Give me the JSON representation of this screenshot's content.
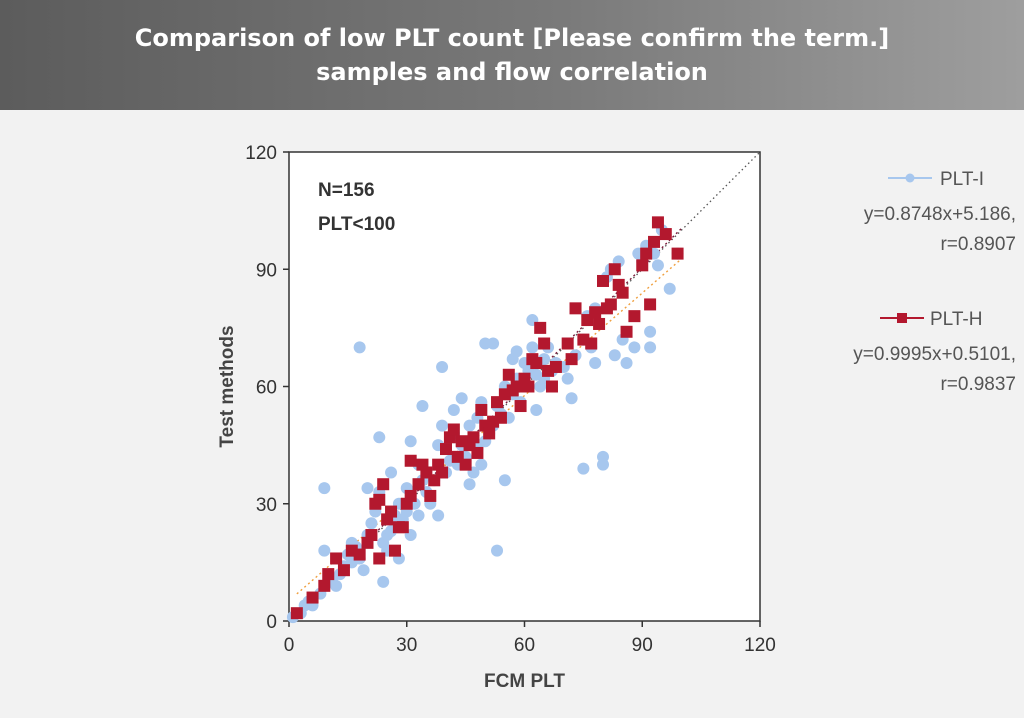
{
  "header": {
    "title_line1": "Comparison of low PLT count [Please confirm the term.]",
    "title_line2": "samples and flow correlation"
  },
  "chart_data": {
    "type": "scatter",
    "title": "",
    "xlabel": "FCM PLT",
    "ylabel": "Test methods",
    "xlim": [
      0,
      120
    ],
    "ylim": [
      0,
      120
    ],
    "xticks": [
      0,
      30,
      60,
      90,
      120
    ],
    "yticks": [
      0,
      30,
      60,
      90,
      120
    ],
    "annotations": [
      "N=156",
      "PLT<100"
    ],
    "identity_line": true,
    "series": [
      {
        "name": "PLT-I",
        "color": "#a7c7ee",
        "marker": "circle",
        "equation": "y=0.8748x+5.186,",
        "r": "r=0.8907",
        "fit": {
          "slope": 0.8748,
          "intercept": 5.186
        },
        "fit_color": "#f0a040",
        "points": [
          [
            1,
            1
          ],
          [
            3,
            2
          ],
          [
            4,
            4
          ],
          [
            5,
            5
          ],
          [
            6,
            4
          ],
          [
            8,
            7
          ],
          [
            9,
            34
          ],
          [
            9,
            18
          ],
          [
            10,
            10
          ],
          [
            11,
            11
          ],
          [
            12,
            9
          ],
          [
            13,
            12
          ],
          [
            14,
            14
          ],
          [
            15,
            17
          ],
          [
            16,
            20
          ],
          [
            16,
            15
          ],
          [
            17,
            19
          ],
          [
            18,
            16
          ],
          [
            18,
            70
          ],
          [
            19,
            13
          ],
          [
            20,
            22
          ],
          [
            20,
            34
          ],
          [
            21,
            25
          ],
          [
            22,
            28
          ],
          [
            23,
            33
          ],
          [
            23,
            47
          ],
          [
            24,
            20
          ],
          [
            24,
            10
          ],
          [
            25,
            22
          ],
          [
            25,
            18
          ],
          [
            26,
            38
          ],
          [
            26,
            23
          ],
          [
            27,
            27
          ],
          [
            28,
            30
          ],
          [
            28,
            16
          ],
          [
            29,
            26
          ],
          [
            30,
            34
          ],
          [
            30,
            28
          ],
          [
            31,
            46
          ],
          [
            31,
            22
          ],
          [
            32,
            30
          ],
          [
            33,
            27
          ],
          [
            33,
            40
          ],
          [
            34,
            36
          ],
          [
            34,
            55
          ],
          [
            35,
            33
          ],
          [
            36,
            30
          ],
          [
            37,
            36
          ],
          [
            38,
            45
          ],
          [
            38,
            27
          ],
          [
            39,
            50
          ],
          [
            39,
            65
          ],
          [
            40,
            38
          ],
          [
            41,
            41
          ],
          [
            42,
            48
          ],
          [
            42,
            54
          ],
          [
            43,
            40
          ],
          [
            44,
            45
          ],
          [
            44,
            57
          ],
          [
            45,
            42
          ],
          [
            46,
            50
          ],
          [
            46,
            35
          ],
          [
            47,
            38
          ],
          [
            48,
            44
          ],
          [
            48,
            52
          ],
          [
            49,
            56
          ],
          [
            49,
            40
          ],
          [
            50,
            46
          ],
          [
            50,
            71
          ],
          [
            51,
            48
          ],
          [
            52,
            50
          ],
          [
            52,
            71
          ],
          [
            53,
            55
          ],
          [
            53,
            18
          ],
          [
            54,
            53
          ],
          [
            55,
            60
          ],
          [
            55,
            36
          ],
          [
            56,
            52
          ],
          [
            57,
            58
          ],
          [
            57,
            67
          ],
          [
            58,
            62
          ],
          [
            58,
            69
          ],
          [
            59,
            56
          ],
          [
            60,
            60
          ],
          [
            60,
            66
          ],
          [
            61,
            64
          ],
          [
            62,
            77
          ],
          [
            62,
            70
          ],
          [
            63,
            54
          ],
          [
            63,
            63
          ],
          [
            64,
            60
          ],
          [
            65,
            67
          ],
          [
            65,
            62
          ],
          [
            66,
            70
          ],
          [
            67,
            64
          ],
          [
            68,
            66
          ],
          [
            70,
            65
          ],
          [
            71,
            62
          ],
          [
            72,
            57
          ],
          [
            73,
            68
          ],
          [
            75,
            72
          ],
          [
            75,
            39
          ],
          [
            76,
            78
          ],
          [
            77,
            70
          ],
          [
            78,
            80
          ],
          [
            78,
            66
          ],
          [
            79,
            76
          ],
          [
            80,
            42
          ],
          [
            80,
            40
          ],
          [
            81,
            88
          ],
          [
            82,
            90
          ],
          [
            83,
            68
          ],
          [
            84,
            92
          ],
          [
            85,
            72
          ],
          [
            86,
            66
          ],
          [
            88,
            70
          ],
          [
            89,
            94
          ],
          [
            90,
            92
          ],
          [
            91,
            96
          ],
          [
            92,
            74
          ],
          [
            92,
            70
          ],
          [
            93,
            94
          ],
          [
            94,
            91
          ],
          [
            95,
            100
          ],
          [
            97,
            85
          ],
          [
            99,
            94
          ]
        ]
      },
      {
        "name": "PLT-H",
        "color": "#b3182e",
        "marker": "square",
        "equation": "y=0.9995x+0.5101,",
        "r": "r=0.9837",
        "fit": {
          "slope": 0.9995,
          "intercept": 0.5101
        },
        "fit_color": "#7a1a3a",
        "points": [
          [
            2,
            2
          ],
          [
            6,
            6
          ],
          [
            9,
            9
          ],
          [
            10,
            12
          ],
          [
            12,
            16
          ],
          [
            14,
            13
          ],
          [
            16,
            18
          ],
          [
            18,
            17
          ],
          [
            20,
            20
          ],
          [
            21,
            22
          ],
          [
            22,
            30
          ],
          [
            23,
            16
          ],
          [
            23,
            31
          ],
          [
            24,
            35
          ],
          [
            25,
            26
          ],
          [
            26,
            28
          ],
          [
            27,
            18
          ],
          [
            28,
            24
          ],
          [
            29,
            24
          ],
          [
            30,
            30
          ],
          [
            31,
            32
          ],
          [
            31,
            41
          ],
          [
            33,
            35
          ],
          [
            34,
            40
          ],
          [
            35,
            38
          ],
          [
            36,
            32
          ],
          [
            37,
            36
          ],
          [
            38,
            40
          ],
          [
            39,
            38
          ],
          [
            40,
            44
          ],
          [
            41,
            47
          ],
          [
            42,
            49
          ],
          [
            43,
            42
          ],
          [
            44,
            46
          ],
          [
            45,
            40
          ],
          [
            46,
            45
          ],
          [
            47,
            47
          ],
          [
            48,
            43
          ],
          [
            49,
            54
          ],
          [
            50,
            50
          ],
          [
            51,
            48
          ],
          [
            52,
            51
          ],
          [
            53,
            56
          ],
          [
            54,
            52
          ],
          [
            55,
            58
          ],
          [
            56,
            63
          ],
          [
            57,
            59
          ],
          [
            58,
            60
          ],
          [
            59,
            55
          ],
          [
            60,
            62
          ],
          [
            61,
            60
          ],
          [
            62,
            67
          ],
          [
            63,
            66
          ],
          [
            64,
            75
          ],
          [
            65,
            71
          ],
          [
            66,
            64
          ],
          [
            67,
            60
          ],
          [
            68,
            65
          ],
          [
            71,
            71
          ],
          [
            72,
            67
          ],
          [
            73,
            80
          ],
          [
            75,
            72
          ],
          [
            76,
            77
          ],
          [
            77,
            71
          ],
          [
            78,
            79
          ],
          [
            79,
            76
          ],
          [
            80,
            87
          ],
          [
            81,
            80
          ],
          [
            82,
            81
          ],
          [
            83,
            90
          ],
          [
            84,
            86
          ],
          [
            85,
            84
          ],
          [
            86,
            74
          ],
          [
            88,
            78
          ],
          [
            90,
            91
          ],
          [
            91,
            94
          ],
          [
            92,
            81
          ],
          [
            93,
            97
          ],
          [
            94,
            102
          ],
          [
            96,
            99
          ],
          [
            99,
            94
          ]
        ]
      }
    ]
  }
}
